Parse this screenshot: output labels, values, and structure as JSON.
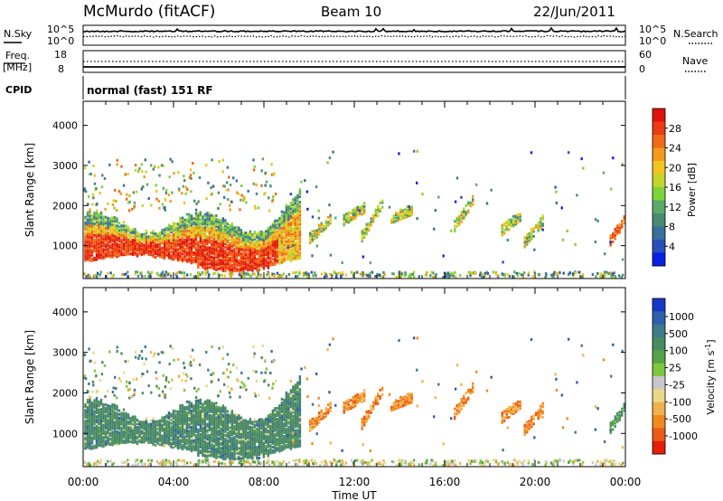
{
  "header": {
    "title": "McMurdo (fitACF)",
    "beam": "Beam 10",
    "date": "22/Jun/2011"
  },
  "noise_panel": {
    "left_label": "N.Sky",
    "left_ticks": [
      "10^5",
      "10^0"
    ],
    "right_label": "N.Search",
    "right_ticks": [
      "10^5",
      "10^0"
    ]
  },
  "freq_panel": {
    "left_label_1": "Freq.",
    "left_label_2": "[MHz]",
    "left_ticks": [
      "18",
      "8"
    ],
    "right_label": "Nave",
    "right_ticks": [
      "60",
      "0"
    ]
  },
  "cpid_panel": {
    "label": "CPID",
    "text": "normal (fast) 151 RF"
  },
  "chart_data": [
    {
      "type": "heatmap",
      "name": "power",
      "ylabel": "Slant Range [km]",
      "xlabel": "Time UT",
      "x_ticks": [
        "00:00",
        "04:00",
        "08:00",
        "12:00",
        "16:00",
        "20:00",
        "00:00"
      ],
      "x_range_hours": [
        0,
        24
      ],
      "y_ticks": [
        1000,
        2000,
        3000,
        4000
      ],
      "y_range_km": [
        180,
        4600
      ],
      "colorbar": {
        "label": "Power [dB]",
        "tick_labels": [
          "4",
          "8",
          "12",
          "16",
          "20",
          "24",
          "28"
        ],
        "range": [
          0,
          32
        ],
        "colors": [
          "#0a1ee6",
          "#2a4fb8",
          "#3a6e9c",
          "#4a8a70",
          "#5aa86a",
          "#7ed23a",
          "#c2d62a",
          "#f2c41e",
          "#f59a1c",
          "#f06818",
          "#ec3a12",
          "#e0120c"
        ]
      }
    },
    {
      "type": "heatmap",
      "name": "velocity",
      "ylabel": "Slant Range [km]",
      "xlabel": "Time UT",
      "x_ticks": [
        "00:00",
        "04:00",
        "08:00",
        "12:00",
        "16:00",
        "20:00",
        "00:00"
      ],
      "x_range_hours": [
        0,
        24
      ],
      "y_ticks": [
        1000,
        2000,
        3000,
        4000
      ],
      "y_range_km": [
        180,
        4600
      ],
      "colorbar": {
        "label": "Velocity [m s^-1]",
        "tick_labels": [
          "1000",
          "500",
          "100",
          "25",
          "-25",
          "-100",
          "-500",
          "-1000"
        ],
        "colors": [
          "#1a36c8",
          "#2f5eae",
          "#3f7a88",
          "#4a8a62",
          "#56a24a",
          "#7ec63e",
          "#c8c8c8",
          "#e8d88a",
          "#f0b24a",
          "#f08a1e",
          "#ec5a16",
          "#e41e0c"
        ]
      }
    }
  ],
  "x_axis": {
    "label": "Time UT",
    "ticks": [
      "00:00",
      "04:00",
      "08:00",
      "12:00",
      "16:00",
      "20:00",
      "00:00"
    ]
  }
}
